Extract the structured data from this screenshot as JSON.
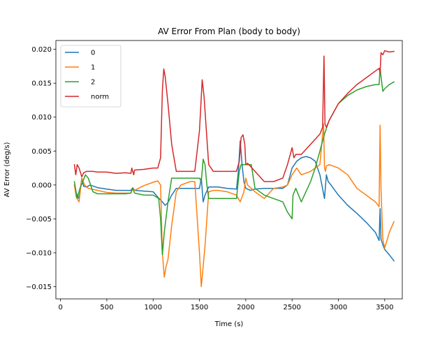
{
  "chart_data": {
    "type": "line",
    "title": "AV Error From Plan (body to body)",
    "xlabel": "Time (s)",
    "ylabel": "AV Error (deg/s)",
    "xlim": [
      -50,
      3690
    ],
    "ylim": [
      -0.0168,
      0.0213
    ],
    "xticks": [
      0,
      500,
      1000,
      1500,
      2000,
      2500,
      3000,
      3500
    ],
    "xtick_labels": [
      "0",
      "500",
      "1000",
      "1500",
      "2000",
      "2500",
      "3000",
      "3500"
    ],
    "yticks": [
      -0.015,
      -0.01,
      -0.005,
      0.0,
      0.005,
      0.01,
      0.015,
      0.02
    ],
    "ytick_labels": [
      "−0.015",
      "−0.010",
      "−0.005",
      "0.000",
      "0.005",
      "0.010",
      "0.015",
      "0.020"
    ],
    "grid": false,
    "legend_position": "top-left",
    "series": [
      {
        "name": "0",
        "color": "#1f77b4",
        "x": [
          150,
          170,
          200,
          230,
          250,
          280,
          320,
          400,
          500,
          600,
          700,
          760,
          780,
          800,
          900,
          1000,
          1050,
          1100,
          1130,
          1160,
          1200,
          1250,
          1300,
          1400,
          1450,
          1500,
          1520,
          1540,
          1560,
          1600,
          1700,
          1800,
          1900,
          1920,
          1940,
          1960,
          1980,
          2000,
          2050,
          2100,
          2200,
          2300,
          2400,
          2450,
          2500,
          2550,
          2600,
          2650,
          2700,
          2750,
          2800,
          2850,
          2870,
          2890,
          2920,
          3000,
          3100,
          3200,
          3300,
          3400,
          3440,
          3450,
          3460,
          3480,
          3500,
          3550,
          3600
        ],
        "y": [
          0.0,
          -0.0012,
          -0.002,
          0.001,
          -0.0002,
          -0.0003,
          0.0,
          -0.0004,
          -0.0006,
          -0.0008,
          -0.0008,
          -0.0008,
          -0.0004,
          -0.0008,
          -0.0009,
          -0.001,
          -0.0018,
          -0.0025,
          -0.003,
          -0.0026,
          -0.0015,
          -0.0005,
          -0.0005,
          -0.0005,
          -0.0005,
          -0.0005,
          0.001,
          -0.0025,
          -0.0015,
          -0.0003,
          -0.0003,
          -0.0005,
          -0.0006,
          0.002,
          0.0065,
          0.003,
          0.0005,
          -0.0005,
          -0.0008,
          -0.0006,
          -0.0005,
          -0.0005,
          -0.0005,
          0.0,
          0.0025,
          0.0035,
          0.004,
          0.0042,
          0.004,
          0.0035,
          0.0015,
          -0.002,
          0.0015,
          0.0005,
          0.0,
          -0.0015,
          -0.003,
          -0.0042,
          -0.0055,
          -0.007,
          -0.0082,
          -0.0035,
          -0.008,
          -0.0088,
          -0.0095,
          -0.0103,
          -0.0112
        ]
      },
      {
        "name": "1",
        "color": "#ff7f0e",
        "x": [
          150,
          170,
          200,
          230,
          260,
          300,
          400,
          500,
          600,
          700,
          760,
          780,
          800,
          900,
          1000,
          1050,
          1080,
          1100,
          1120,
          1140,
          1160,
          1200,
          1250,
          1300,
          1400,
          1450,
          1500,
          1520,
          1540,
          1560,
          1580,
          1600,
          1650,
          1700,
          1800,
          1900,
          1940,
          1980,
          2000,
          2020,
          2100,
          2200,
          2300,
          2400,
          2450,
          2500,
          2550,
          2600,
          2700,
          2800,
          2840,
          2850,
          2860,
          2870,
          2900,
          3000,
          3100,
          3200,
          3300,
          3400,
          3440,
          3450,
          3460,
          3480,
          3500,
          3550,
          3600
        ],
        "y": [
          0.0,
          -0.0018,
          -0.0025,
          0.001,
          0.0,
          -0.0005,
          -0.0008,
          -0.0011,
          -0.0012,
          -0.0012,
          -0.0012,
          -0.0004,
          -0.0008,
          -0.0001,
          0.0004,
          0.0006,
          0.0,
          -0.01,
          -0.0136,
          -0.012,
          -0.011,
          -0.006,
          -0.001,
          0.0,
          0.0005,
          0.0005,
          -0.01,
          -0.015,
          -0.012,
          -0.009,
          -0.005,
          -0.001,
          -0.0008,
          -0.0008,
          -0.001,
          -0.0015,
          -0.0025,
          -0.001,
          0.001,
          0.0,
          -0.001,
          -0.002,
          -0.0005,
          -0.0003,
          0.0,
          0.0015,
          0.0025,
          0.0015,
          0.002,
          0.003,
          0.009,
          0.0025,
          0.002,
          0.0028,
          0.003,
          0.0025,
          0.0015,
          -0.0005,
          -0.0015,
          -0.0025,
          -0.0032,
          0.0088,
          -0.0005,
          -0.008,
          -0.0093,
          -0.007,
          -0.0054
        ]
      },
      {
        "name": "2",
        "color": "#2ca02c",
        "x": [
          150,
          180,
          210,
          240,
          270,
          300,
          350,
          400,
          500,
          600,
          700,
          760,
          780,
          800,
          900,
          1000,
          1060,
          1080,
          1100,
          1120,
          1160,
          1200,
          1220,
          1300,
          1400,
          1450,
          1480,
          1500,
          1520,
          1540,
          1560,
          1580,
          1600,
          1650,
          1700,
          1800,
          1900,
          1930,
          1950,
          1980,
          2000,
          2030,
          2060,
          2100,
          2200,
          2300,
          2400,
          2450,
          2500,
          2510,
          2540,
          2600,
          2700,
          2750,
          2800,
          2850,
          2900,
          3000,
          3100,
          3200,
          3300,
          3400,
          3440,
          3450,
          3460,
          3480,
          3500,
          3550,
          3600
        ],
        "y": [
          0.0005,
          -0.002,
          -0.0005,
          0.0005,
          0.0015,
          0.001,
          -0.001,
          -0.0013,
          -0.0013,
          -0.0013,
          -0.0013,
          -0.0012,
          -0.0005,
          -0.0012,
          -0.0015,
          -0.0015,
          -0.002,
          -0.005,
          -0.0103,
          -0.007,
          -0.0025,
          0.001,
          0.001,
          0.001,
          0.001,
          0.001,
          0.001,
          0.001,
          0.0005,
          0.0038,
          0.003,
          0.0,
          -0.002,
          -0.002,
          -0.002,
          -0.002,
          -0.002,
          0.002,
          0.003,
          0.003,
          0.003,
          0.003,
          0.003,
          -0.0005,
          -0.0015,
          -0.002,
          -0.0025,
          -0.004,
          -0.005,
          -0.0015,
          -0.0005,
          -0.0025,
          0.0005,
          0.0025,
          0.005,
          0.0075,
          0.0095,
          0.012,
          0.0132,
          0.014,
          0.0145,
          0.0148,
          0.0148,
          0.0172,
          0.016,
          0.0138,
          0.0142,
          0.0148,
          0.0152
        ]
      },
      {
        "name": "norm",
        "color": "#d62728",
        "x": [
          150,
          165,
          180,
          200,
          230,
          250,
          280,
          300,
          350,
          400,
          500,
          600,
          700,
          760,
          770,
          790,
          800,
          900,
          1000,
          1050,
          1080,
          1100,
          1115,
          1130,
          1160,
          1200,
          1250,
          1300,
          1400,
          1450,
          1500,
          1530,
          1550,
          1570,
          1600,
          1650,
          1700,
          1800,
          1900,
          1930,
          1950,
          1970,
          1990,
          2000,
          2020,
          2100,
          2200,
          2300,
          2400,
          2450,
          2500,
          2520,
          2540,
          2600,
          2700,
          2800,
          2830,
          2845,
          2855,
          2870,
          2900,
          3000,
          3100,
          3200,
          3300,
          3400,
          3440,
          3450,
          3460,
          3480,
          3500,
          3550,
          3600
        ],
        "y": [
          0.003,
          0.0015,
          0.003,
          0.0025,
          0.0012,
          0.0018,
          0.002,
          0.002,
          0.002,
          0.0019,
          0.0019,
          0.0017,
          0.0018,
          0.0017,
          0.0025,
          0.0015,
          0.0022,
          0.0023,
          0.0025,
          0.0025,
          0.004,
          0.014,
          0.0171,
          0.016,
          0.012,
          0.006,
          0.002,
          0.002,
          0.002,
          0.002,
          0.008,
          0.0155,
          0.013,
          0.009,
          0.003,
          0.002,
          0.002,
          0.002,
          0.002,
          0.0035,
          0.007,
          0.0074,
          0.006,
          0.003,
          0.0032,
          0.002,
          0.0005,
          0.0005,
          0.001,
          0.003,
          0.0055,
          0.004,
          0.0045,
          0.0045,
          0.006,
          0.0075,
          0.0085,
          0.019,
          0.009,
          0.0085,
          0.0095,
          0.012,
          0.0135,
          0.0148,
          0.0158,
          0.0168,
          0.0172,
          0.0165,
          0.0195,
          0.0192,
          0.0198,
          0.0196,
          0.0197
        ]
      }
    ]
  }
}
